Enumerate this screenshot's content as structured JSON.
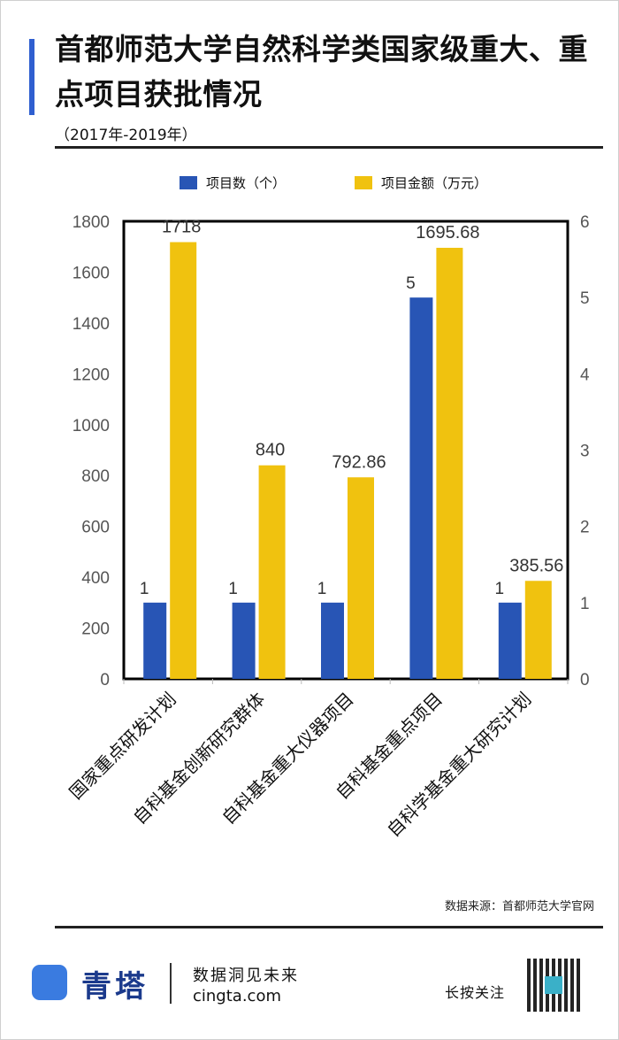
{
  "header": {
    "title": "首都师范大学自然科学类国家级重大、重点项目获批情况",
    "subtitle": "（2017年-2019年）"
  },
  "legend": [
    {
      "label": "项目数（个）",
      "color": "#2855b5"
    },
    {
      "label": "项目金额（万元）",
      "color": "#f0c20f"
    }
  ],
  "chart_data": {
    "type": "bar",
    "categories": [
      "国家重点研发计划",
      "自科基金创新研究群体",
      "自科基金重大仪器项目",
      "自科基金重点项目",
      "自科学基金重大研究计划"
    ],
    "series": [
      {
        "name": "项目数（个）",
        "axis": "right",
        "values": [
          1,
          1,
          1,
          5,
          1
        ],
        "labels": [
          "1",
          "1",
          "1",
          "5",
          "1"
        ],
        "color": "#2855b5"
      },
      {
        "name": "项目金额（万元）",
        "axis": "left",
        "values": [
          1718,
          840,
          792.86,
          1695.68,
          385.56
        ],
        "labels": [
          "1718",
          "840",
          "792.86",
          "1695.68",
          "385.56"
        ],
        "color": "#f0c20f"
      }
    ],
    "y_left": {
      "min": 0,
      "max": 1800,
      "ticks": [
        "0",
        "200",
        "400",
        "600",
        "800",
        "1000",
        "1200",
        "1400",
        "1600",
        "1800"
      ]
    },
    "y_right": {
      "min": 0,
      "max": 6,
      "ticks": [
        "0",
        "1",
        "2",
        "3",
        "4",
        "5",
        "6"
      ]
    }
  },
  "source": "数据来源：首都师范大学官网",
  "footer": {
    "brand": "青塔",
    "slogan": "数据洞见未来",
    "url": "cingta.com",
    "follow": "长按关注"
  }
}
